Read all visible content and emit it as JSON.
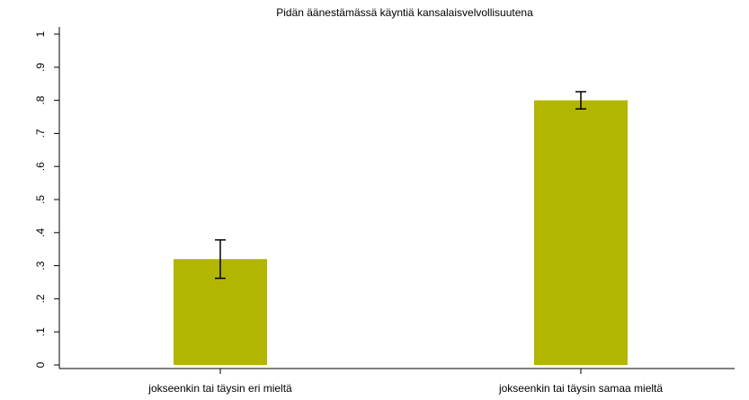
{
  "chart_data": {
    "type": "bar",
    "title": "Pidän äänestämässä käyntiä kansalaisvelvollisuutena",
    "categories": [
      "jokseenkin tai täysin eri mieltä",
      "jokseenkin tai täysin samaa mieltä"
    ],
    "values": [
      0.32,
      0.8
    ],
    "errors": [
      0.058,
      0.026
    ],
    "color": "#b3b600",
    "ylim": [
      0,
      1
    ],
    "yticks": [
      0,
      {
        "value": 0.1,
        "label": ".1"
      },
      {
        "value": 0.2,
        "label": ".2"
      },
      {
        "value": 0.3,
        "label": ".3"
      },
      {
        "value": 0.4,
        "label": ".4"
      },
      {
        "value": 0.5,
        "label": ".5"
      },
      {
        "value": 0.6,
        "label": ".6"
      },
      {
        "value": 0.7,
        "label": ".7"
      },
      {
        "value": 0.8,
        "label": ".8"
      },
      {
        "value": 0.9,
        "label": ".9"
      },
      1
    ],
    "grid": false
  }
}
